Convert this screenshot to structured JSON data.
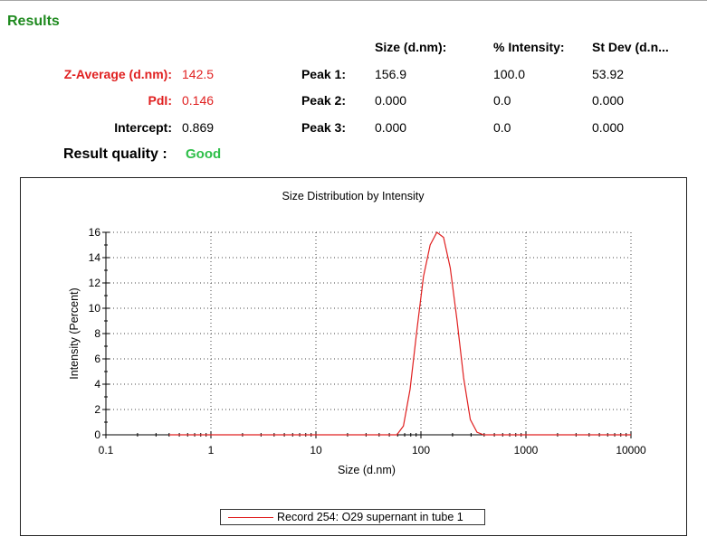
{
  "results": {
    "title": "Results",
    "table_headers": [
      "Size (d.nm):",
      "% Intensity:",
      "St Dev (d.n..."
    ],
    "summary": [
      {
        "label": "Z-Average (d.nm):",
        "value": "142.5"
      },
      {
        "label": "PdI:",
        "value": "0.146"
      },
      {
        "label": "Intercept:",
        "value": "0.869"
      }
    ],
    "peaks": [
      {
        "label": "Peak 1:",
        "size": "156.9",
        "intensity": "100.0",
        "stdev": "53.92"
      },
      {
        "label": "Peak 2:",
        "size": "0.000",
        "intensity": "0.0",
        "stdev": "0.000"
      },
      {
        "label": "Peak 3:",
        "size": "0.000",
        "intensity": "0.0",
        "stdev": "0.000"
      }
    ],
    "quality_label": "Result quality :",
    "quality_value": "Good"
  },
  "colors": {
    "title_green": "#1f8a1f",
    "highlight_red": "#e02020",
    "quality_green": "#2fbf4a",
    "series_red": "#e02020"
  },
  "chart_data": {
    "type": "line",
    "title": "Size Distribution by Intensity",
    "xlabel": "Size (d.nm)",
    "ylabel": "Intensity (Percent)",
    "x_scale": "log",
    "xlim": [
      0.1,
      10000
    ],
    "ylim": [
      0,
      16
    ],
    "x_ticks": [
      0.1,
      1,
      10,
      100,
      1000,
      10000
    ],
    "x_tick_labels": [
      "0.1",
      "1",
      "10",
      "100",
      "1000",
      "10000"
    ],
    "y_ticks": [
      0,
      2,
      4,
      6,
      8,
      10,
      12,
      14,
      16
    ],
    "y_tick_labels": [
      "0",
      "2",
      "4",
      "6",
      "8",
      "10",
      "12",
      "14",
      "16"
    ],
    "grid": true,
    "legend_position": "bottom-center",
    "series": [
      {
        "name": "Record 254: O29 supernant in tube  1",
        "color": "#e02020",
        "x": [
          0.4,
          1,
          10,
          50,
          59,
          68.1,
          78.8,
          91.3,
          105.7,
          122.4,
          141.8,
          164.2,
          190.1,
          220.2,
          255,
          295.3,
          342,
          396.1,
          458.7,
          1000,
          10000
        ],
        "y": [
          0,
          0,
          0,
          0,
          0,
          0.7,
          3.6,
          8.2,
          12.5,
          15,
          16,
          15.6,
          13.2,
          9.1,
          4.5,
          1.2,
          0.2,
          0,
          0,
          0,
          0
        ]
      }
    ]
  }
}
